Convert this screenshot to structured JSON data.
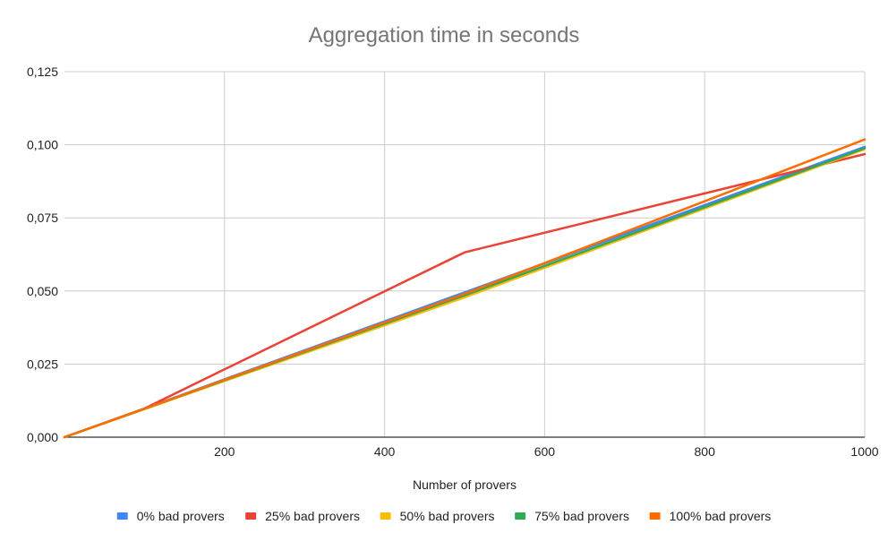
{
  "chart_data": {
    "type": "line",
    "title": "Aggregation time in seconds",
    "xlabel": "Number of provers",
    "ylabel": "",
    "xlim": [
      0,
      1000
    ],
    "ylim": [
      0,
      0.125
    ],
    "x_ticks": [
      200,
      400,
      600,
      800,
      1000
    ],
    "y_ticks": [
      0,
      0.025,
      0.05,
      0.075,
      0.1,
      0.125
    ],
    "x_tick_labels": [
      "200",
      "400",
      "600",
      "800",
      "1000"
    ],
    "y_tick_labels": [
      "0,000",
      "0,025",
      "0,050",
      "0,075",
      "0,100",
      "0,125"
    ],
    "grid": true,
    "legend_position": "bottom",
    "series": [
      {
        "name": "0% bad provers",
        "color": "#4285F4",
        "x": [
          0,
          100,
          200,
          500,
          1000
        ],
        "y": [
          0,
          0.0098,
          0.0198,
          0.0495,
          0.0993
        ]
      },
      {
        "name": "25% bad provers",
        "color": "#EA4335",
        "x": [
          0,
          100,
          200,
          500,
          1000
        ],
        "y": [
          0,
          0.0098,
          0.0232,
          0.0632,
          0.0968
        ]
      },
      {
        "name": "50% bad provers",
        "color": "#FBBC04",
        "x": [
          0,
          100,
          200,
          500,
          1000
        ],
        "y": [
          0,
          0.0096,
          0.0192,
          0.0478,
          0.0985
        ]
      },
      {
        "name": "75% bad provers",
        "color": "#34A853",
        "x": [
          0,
          100,
          200,
          500,
          1000
        ],
        "y": [
          0,
          0.0097,
          0.0195,
          0.0485,
          0.0988
        ]
      },
      {
        "name": "100% bad provers",
        "color": "#FF6D01",
        "x": [
          0,
          100,
          200,
          500,
          1000
        ],
        "y": [
          0,
          0.0097,
          0.0196,
          0.049,
          0.1018
        ]
      }
    ]
  }
}
